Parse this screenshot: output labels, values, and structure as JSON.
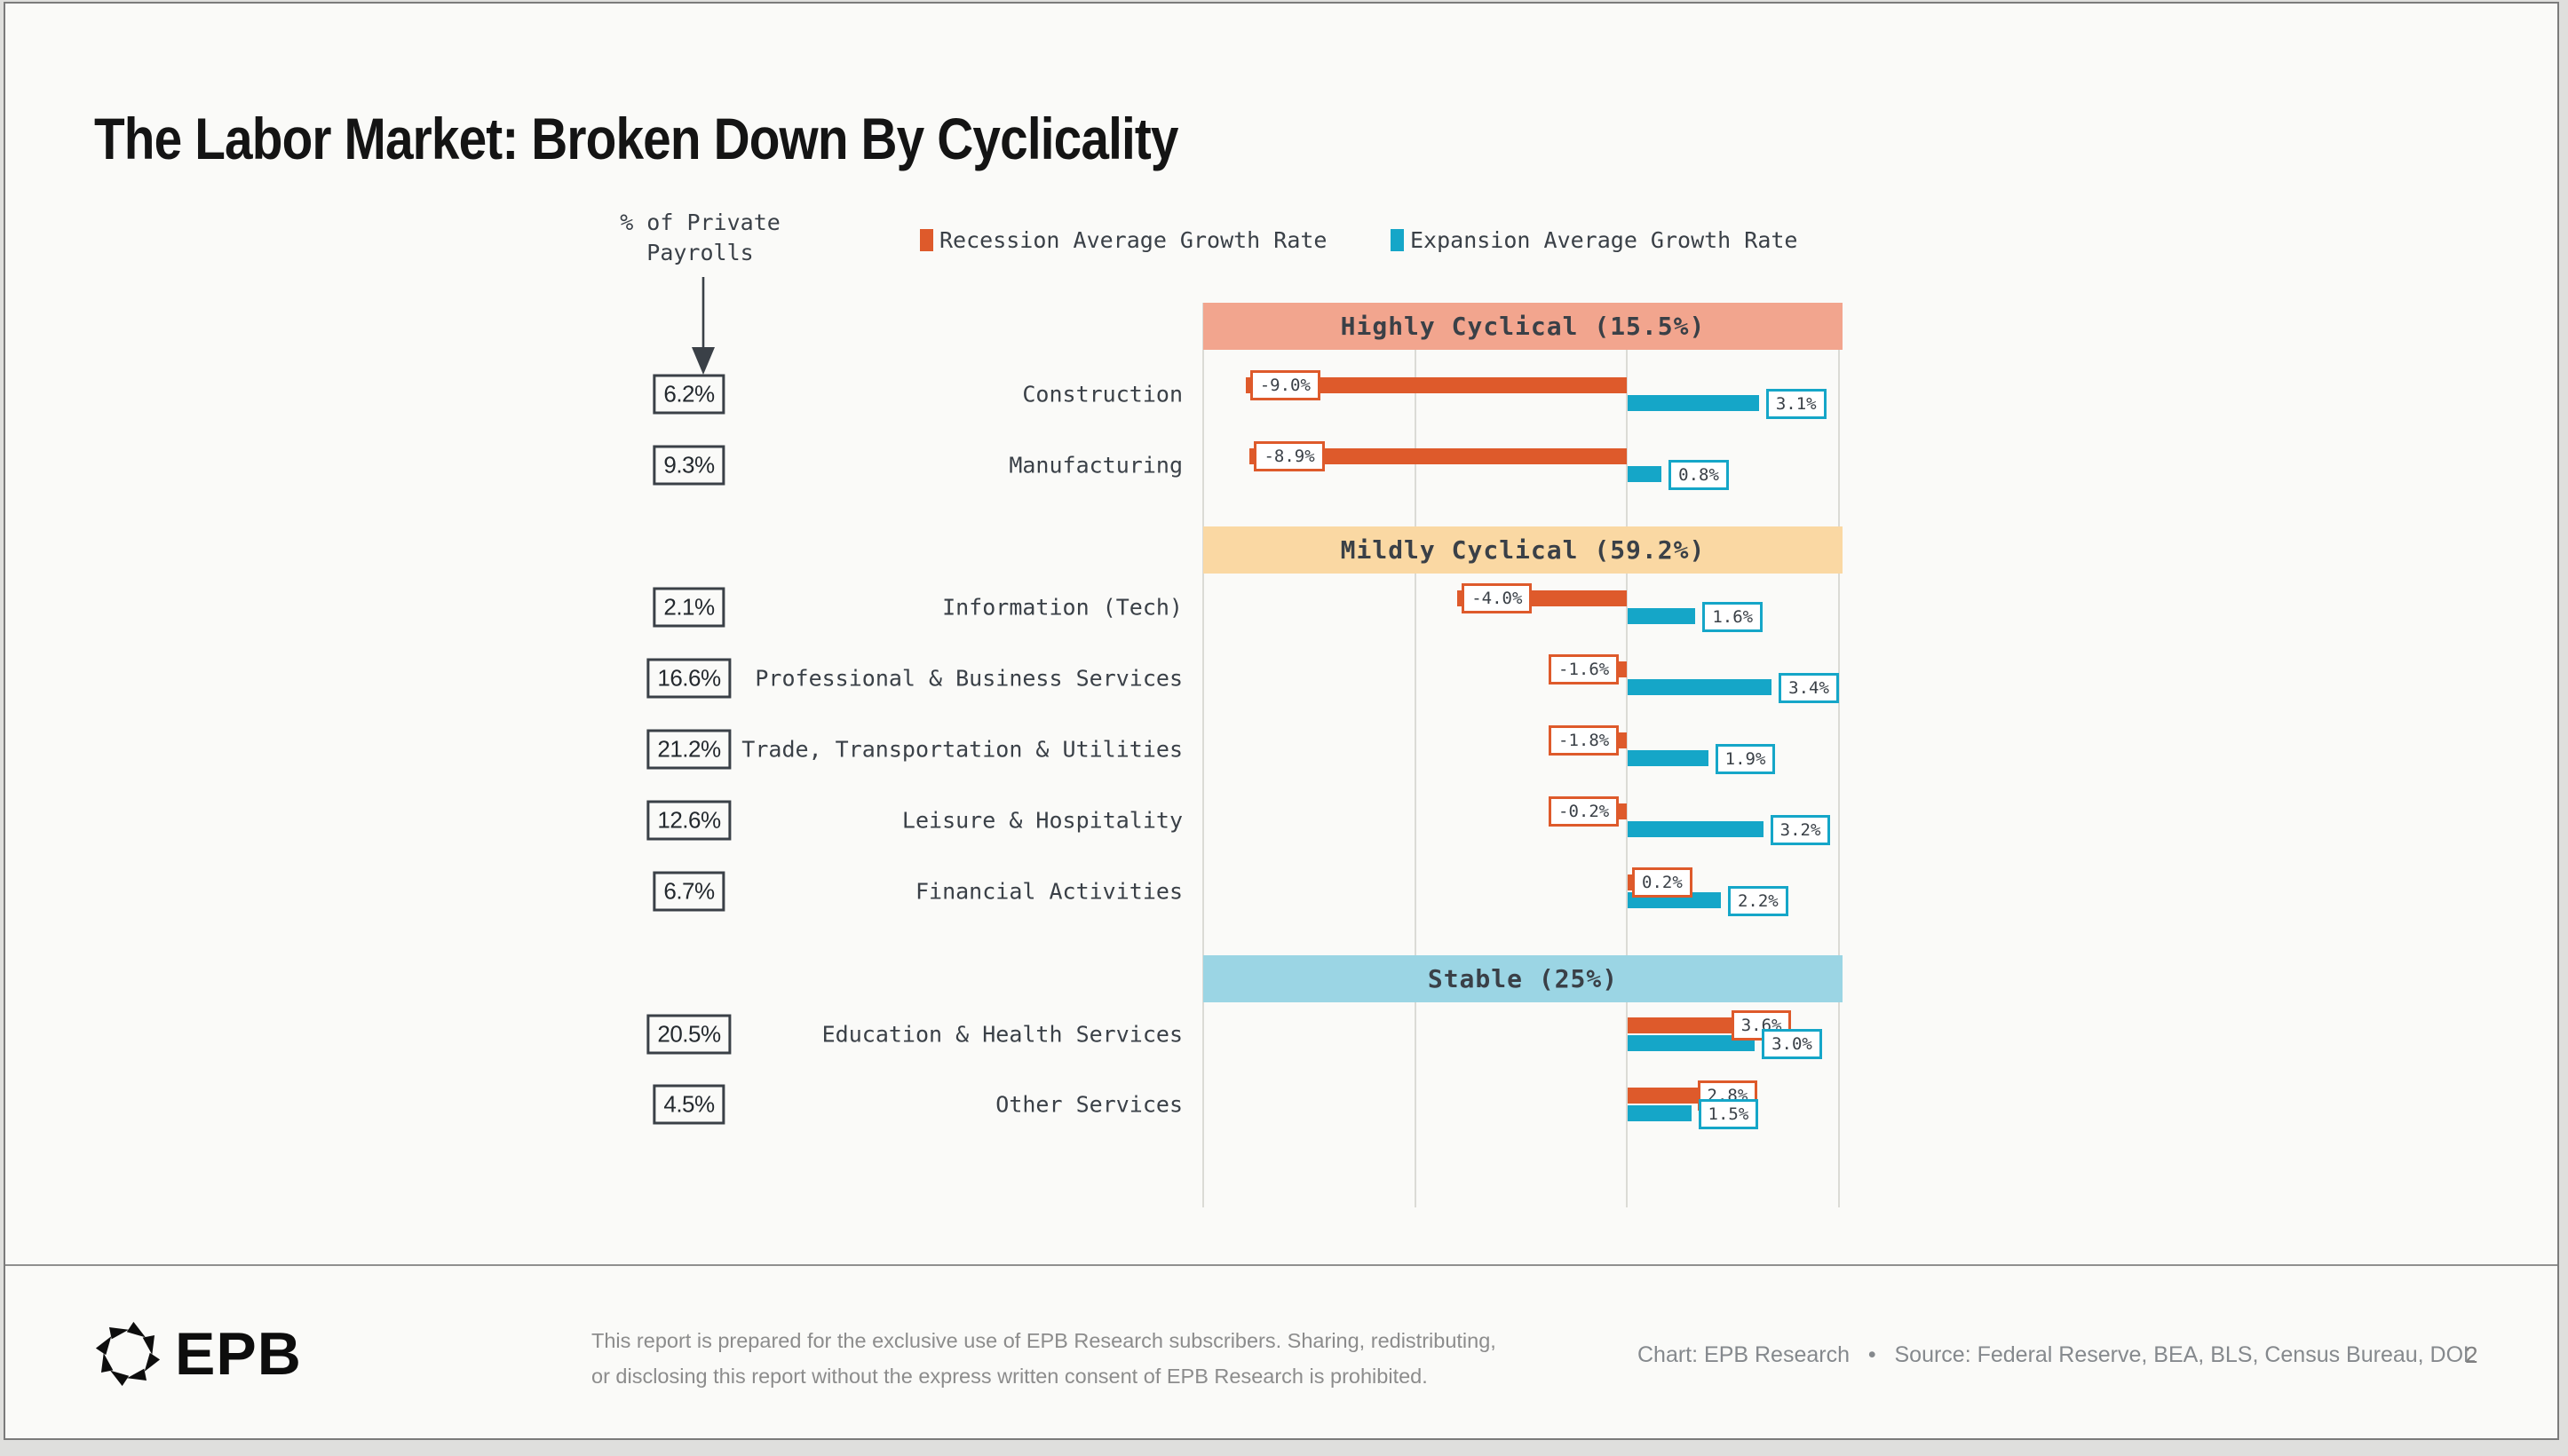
{
  "title": "The Labor Market: Broken Down By Cyclicality",
  "axis_note": {
    "line1": "% of Private",
    "line2": "Payrolls"
  },
  "legend": {
    "recession": "Recession Average Growth Rate",
    "expansion": "Expansion Average Growth Rate"
  },
  "colors": {
    "recession": "#DE5A2B",
    "expansion": "#15A6C8",
    "band_highly": "#F2A58E",
    "band_mildly": "#FAD8A3",
    "band_stable": "#9BD5E4",
    "grid": "#DBDBD6",
    "ink": "#3A4047",
    "page_bg": "#FAFAF8"
  },
  "chart_data": {
    "type": "bar",
    "orientation": "horizontal",
    "title": "The Labor Market: Broken Down By Cyclicality",
    "x_axis": {
      "min": -10,
      "max": 5,
      "unit": "%",
      "gridlines": [
        -10,
        -5,
        0,
        5
      ],
      "grid": true
    },
    "series": [
      "Recession Average Growth Rate",
      "Expansion Average Growth Rate"
    ],
    "sections": [
      {
        "label": "Highly Cyclical (15.5%)",
        "band_color_key": "band_highly",
        "rows": [
          {
            "category": "Construction",
            "payroll_share": "6.2%",
            "recession": -9.0,
            "recession_label": "-9.0%",
            "expansion": 3.1,
            "expansion_label": "3.1%"
          },
          {
            "category": "Manufacturing",
            "payroll_share": "9.3%",
            "recession": -8.9,
            "recession_label": "-8.9%",
            "expansion": 0.8,
            "expansion_label": "0.8%"
          }
        ]
      },
      {
        "label": "Mildly Cyclical (59.2%)",
        "band_color_key": "band_mildly",
        "rows": [
          {
            "category": "Information (Tech)",
            "payroll_share": "2.1%",
            "recession": -4.0,
            "recession_label": "-4.0%",
            "expansion": 1.6,
            "expansion_label": "1.6%"
          },
          {
            "category": "Professional & Business Services",
            "payroll_share": "16.6%",
            "recession": -1.6,
            "recession_label": "-1.6%",
            "expansion": 3.4,
            "expansion_label": "3.4%"
          },
          {
            "category": "Trade, Transportation & Utilities",
            "payroll_share": "21.2%",
            "recession": -1.8,
            "recession_label": "-1.8%",
            "expansion": 1.9,
            "expansion_label": "1.9%"
          },
          {
            "category": "Leisure & Hospitality",
            "payroll_share": "12.6%",
            "recession": -0.2,
            "recession_label": "-0.2%",
            "expansion": 3.2,
            "expansion_label": "3.2%"
          },
          {
            "category": "Financial Activities",
            "payroll_share": "6.7%",
            "recession": 0.2,
            "recession_label": "0.2%",
            "expansion": 2.2,
            "expansion_label": "2.2%"
          }
        ]
      },
      {
        "label": "Stable (25%)",
        "band_color_key": "band_stable",
        "rows": [
          {
            "category": "Education & Health Services",
            "payroll_share": "20.5%",
            "recession": 3.6,
            "recession_label": "3.6%",
            "expansion": 3.0,
            "expansion_label": "3.0%"
          },
          {
            "category": "Other Services",
            "payroll_share": "4.5%",
            "recession": 2.8,
            "recession_label": "2.8%",
            "expansion": 1.5,
            "expansion_label": "1.5%"
          }
        ]
      }
    ]
  },
  "footer": {
    "logo_text": "EPB",
    "disclaimer_line1": "This report is prepared for the exclusive use of EPB Research subscribers. Sharing, redistributing,",
    "disclaimer_line2": "or disclosing this report without the express written consent of EPB Research is prohibited.",
    "chart_credit": "Chart: EPB Research",
    "separator": "•",
    "source": "Source: Federal Reserve, BEA, BLS, Census Bureau, DOL",
    "page_number": "2"
  }
}
